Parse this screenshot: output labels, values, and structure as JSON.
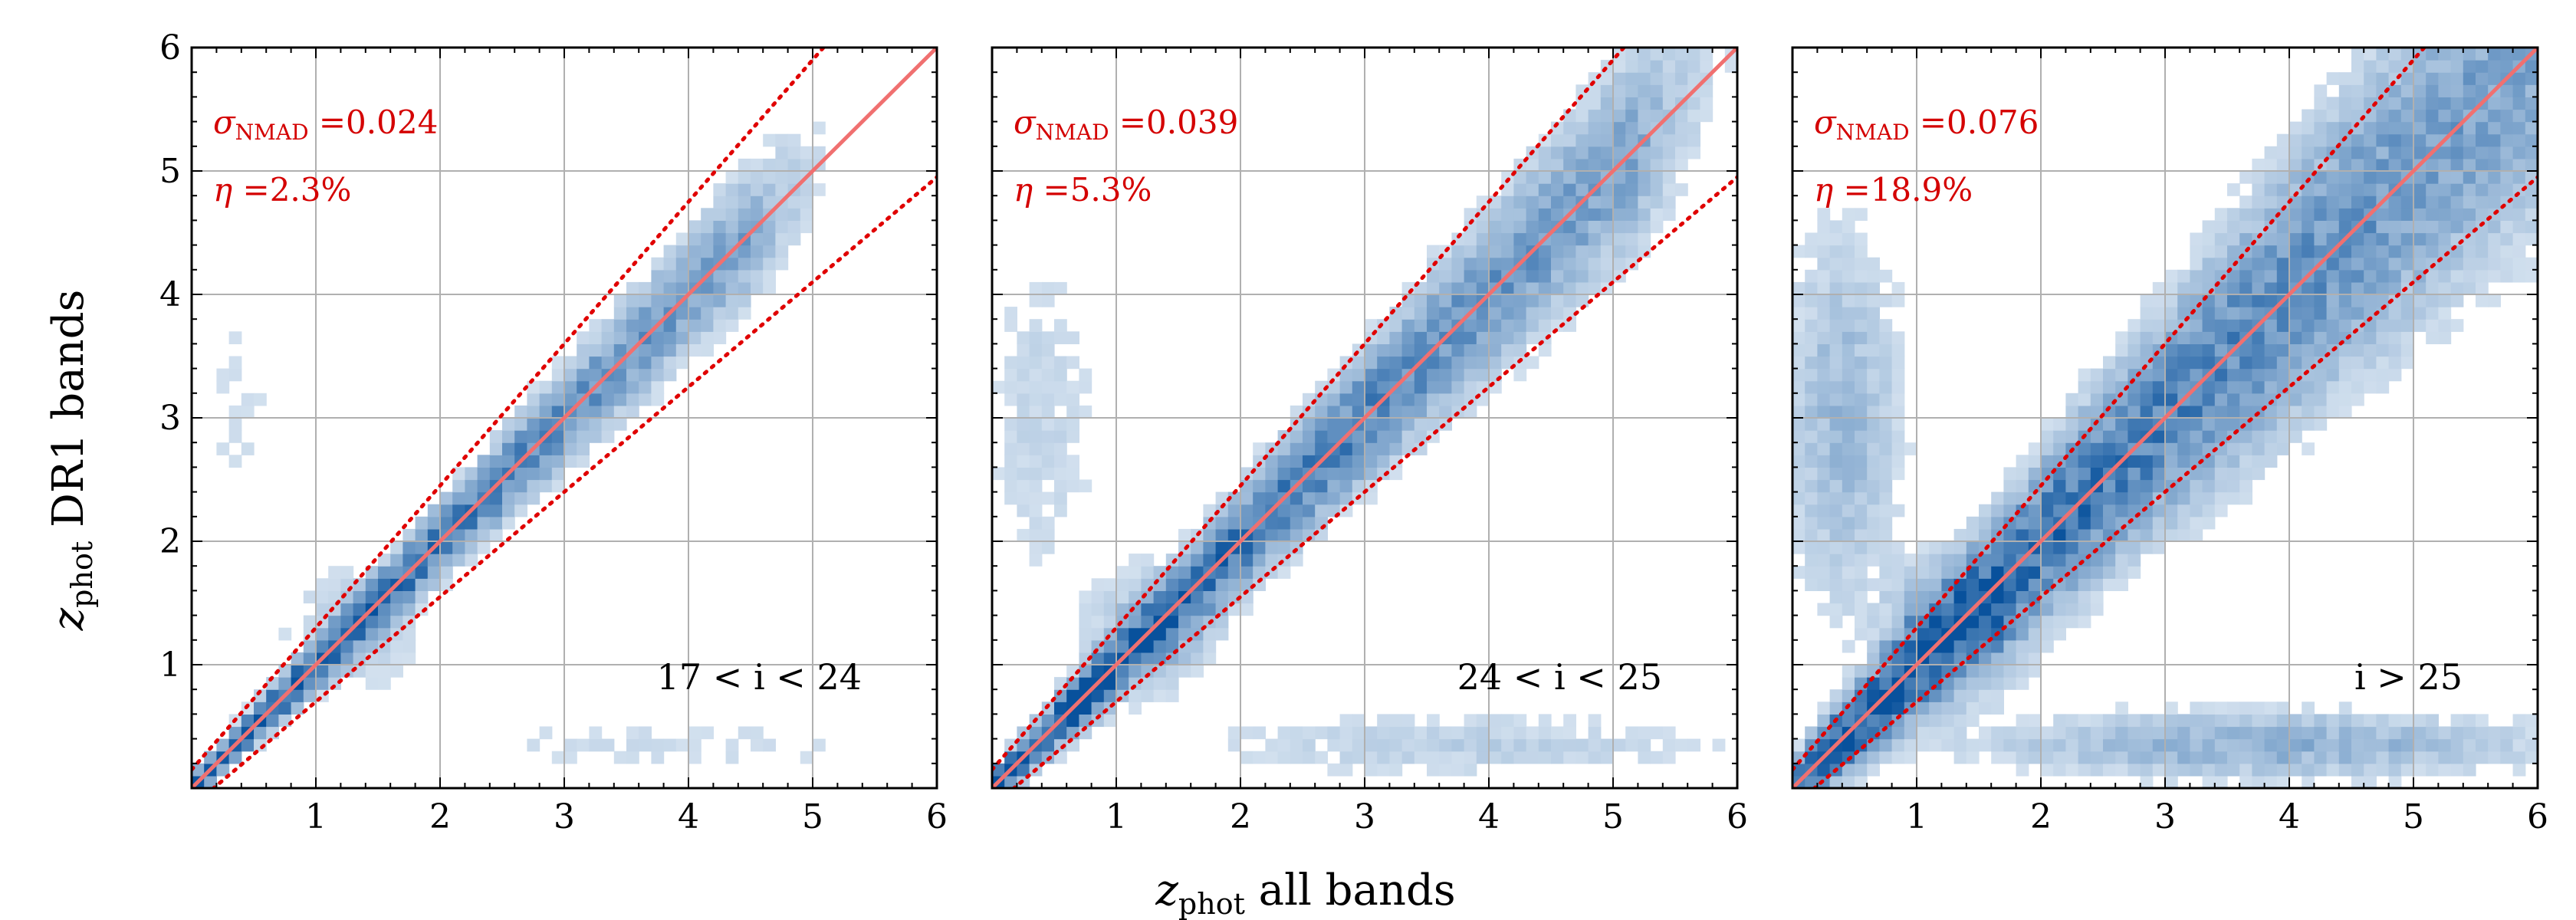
{
  "figure": {
    "xlabel": {
      "sym": "z",
      "sub": "phot",
      "rest": " all bands"
    },
    "ylabel": {
      "sym": "z",
      "sub": "phot",
      "rest": " DR1 bands"
    }
  },
  "colors": {
    "hist_low": "#f1f6fb",
    "hist_high": "#08519c",
    "identity_line": "#f07070",
    "outlier_bounds": "#e00000",
    "annotation": "#d40000",
    "grid": "#b0b0b0"
  },
  "chart_data": [
    {
      "type": "heatmap",
      "subtype": "2d-histogram",
      "xlim": [
        0,
        6
      ],
      "ylim": [
        0,
        6
      ],
      "xticks": [
        "1",
        "2",
        "3",
        "4",
        "5",
        "6"
      ],
      "yticks": [
        "1",
        "2",
        "3",
        "4",
        "5",
        "6"
      ],
      "grid": true,
      "lines": [
        {
          "name": "identity",
          "style": "solid",
          "equation": "y = x"
        },
        {
          "name": "outlier-upper",
          "style": "dotted",
          "equation": "y = x + 0.15(1+x)"
        },
        {
          "name": "outlier-lower",
          "style": "dotted",
          "equation": "y = x - 0.15(1+x)"
        }
      ],
      "annotations": {
        "sigma_sym": "σ",
        "sigma_sub": "NMAD",
        "sigma_value": " =0.024",
        "eta_sym": "η",
        "eta_value": " =2.3%",
        "range": "17 < i < 24"
      },
      "density": {
        "width": 0.055,
        "ridge_extent": 4.5,
        "outlier_level": 0.1,
        "low_z_clump": 0.3
      }
    },
    {
      "type": "heatmap",
      "subtype": "2d-histogram",
      "xlim": [
        0,
        6
      ],
      "ylim": [
        0,
        6
      ],
      "xticks": [
        "1",
        "2",
        "3",
        "4",
        "5",
        "6"
      ],
      "yticks": [
        "1",
        "2",
        "3",
        "4",
        "5",
        "6"
      ],
      "grid": true,
      "lines": [
        {
          "name": "identity",
          "style": "solid",
          "equation": "y = x"
        },
        {
          "name": "outlier-upper",
          "style": "dotted",
          "equation": "y = x + 0.15(1+x)"
        },
        {
          "name": "outlier-lower",
          "style": "dotted",
          "equation": "y = x - 0.15(1+x)"
        }
      ],
      "annotations": {
        "sigma_sym": "σ",
        "sigma_sub": "NMAD",
        "sigma_value": " =0.039",
        "eta_sym": "η",
        "eta_value": " =5.3%",
        "range": "24 < i < 25"
      },
      "density": {
        "width": 0.075,
        "ridge_extent": 5.2,
        "outlier_level": 0.2,
        "low_z_clump": 0.45
      }
    },
    {
      "type": "heatmap",
      "subtype": "2d-histogram",
      "xlim": [
        0,
        6
      ],
      "ylim": [
        0,
        6
      ],
      "xticks": [
        "1",
        "2",
        "3",
        "4",
        "5",
        "6"
      ],
      "yticks": [
        "1",
        "2",
        "3",
        "4",
        "5",
        "6"
      ],
      "grid": true,
      "lines": [
        {
          "name": "identity",
          "style": "solid",
          "equation": "y = x"
        },
        {
          "name": "outlier-upper",
          "style": "dotted",
          "equation": "y = x + 0.15(1+x)"
        },
        {
          "name": "outlier-lower",
          "style": "dotted",
          "equation": "y = x - 0.15(1+x)"
        }
      ],
      "annotations": {
        "sigma_sym": "σ",
        "sigma_sub": "NMAD",
        "sigma_value": " =0.076",
        "eta_sym": "η",
        "eta_value": " =18.9%",
        "range": "i > 25"
      },
      "density": {
        "width": 0.12,
        "ridge_extent": 6.0,
        "outlier_level": 0.55,
        "low_z_clump": 0.9
      }
    }
  ]
}
